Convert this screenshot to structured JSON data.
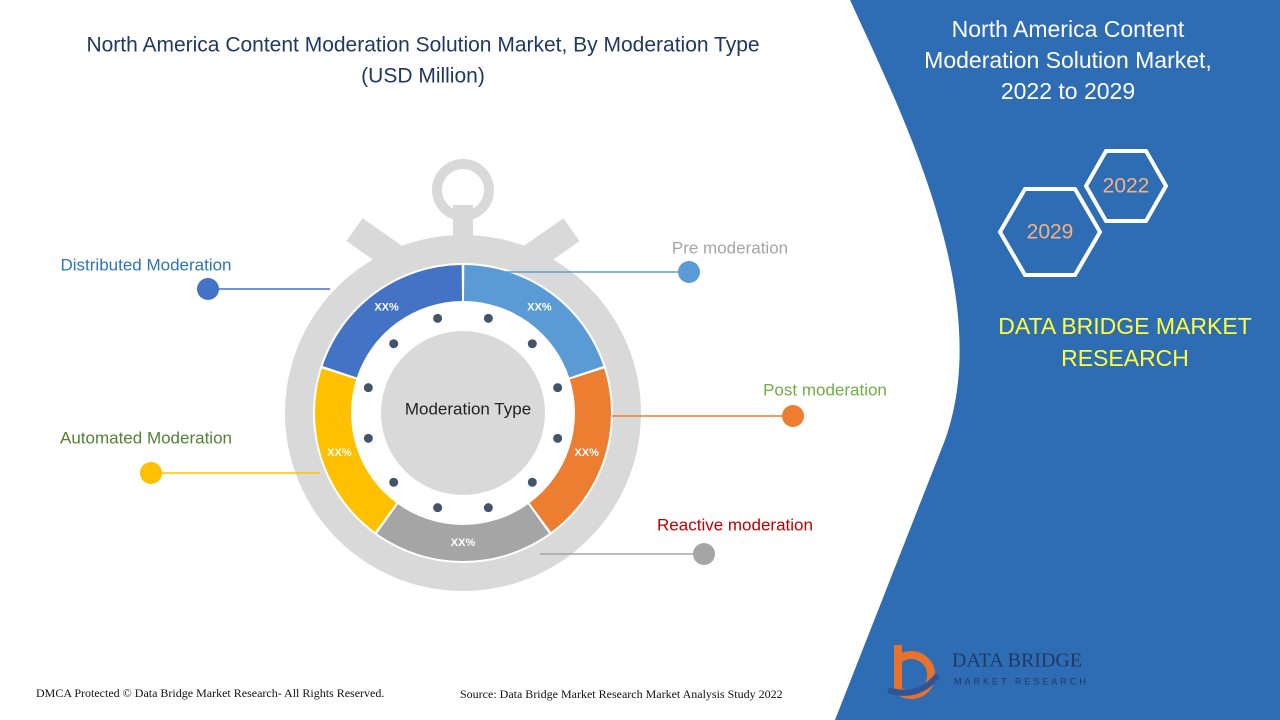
{
  "title": "North America Content Moderation Solution Market, By Moderation Type",
  "subtitle": "(USD Million)",
  "center_label": "Moderation Type",
  "segments": [
    {
      "label": "Pre moderation",
      "share": "XX%",
      "color": "#5B9BD5",
      "label_color": "#A5A5A5"
    },
    {
      "label": "Post moderation",
      "share": "XX%",
      "color": "#ED7D31",
      "label_color": "#70AD47"
    },
    {
      "label": "Reactive moderation",
      "share": "XX%",
      "color": "#A5A5A5",
      "label_color": "#C00000"
    },
    {
      "label": "Automated Moderation",
      "share": "XX%",
      "color": "#FFC000",
      "label_color": "#548235"
    },
    {
      "label": "Distributed Moderation",
      "share": "XX%",
      "color": "#4472C4",
      "label_color": "#2E75B6"
    }
  ],
  "side_panel": {
    "title": "North America Content Moderation Solution Market, 2022 to 2029",
    "year_start": "2022",
    "year_end": "2029",
    "brand": "DATA BRIDGE MARKET RESEARCH",
    "logo_name": "DATA BRIDGE",
    "logo_tagline": "MARKET RESEARCH"
  },
  "footer": {
    "copyright": "DMCA Protected © Data Bridge Market Research- All Rights Reserved.",
    "source": "Source: Data Bridge Market Research Market Analysis Study 2022"
  }
}
